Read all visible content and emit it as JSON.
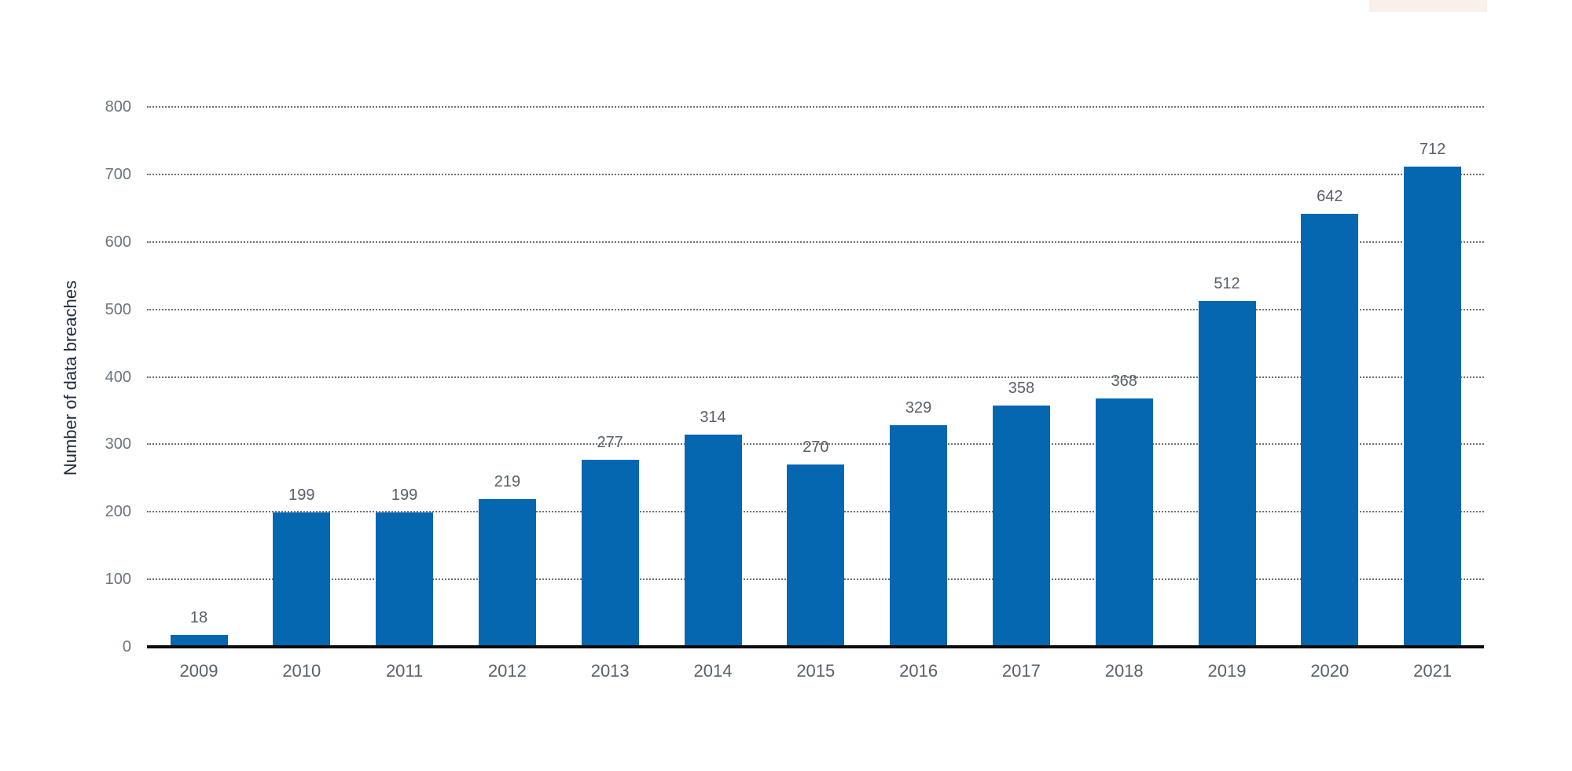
{
  "chart_data": {
    "type": "bar",
    "categories": [
      "2009",
      "2010",
      "2011",
      "2012",
      "2013",
      "2014",
      "2015",
      "2016",
      "2017",
      "2018",
      "2019",
      "2020",
      "2021"
    ],
    "values": [
      18,
      199,
      199,
      219,
      277,
      314,
      270,
      329,
      358,
      368,
      512,
      642,
      712
    ],
    "bar_value_labels": [
      "18",
      "199",
      "199",
      "219",
      "277",
      "314",
      "270",
      "329",
      "358",
      "368",
      "512",
      "642",
      "712"
    ],
    "title": "",
    "xlabel": "",
    "ylabel": "Number of data breaches",
    "ylim": [
      0,
      800
    ],
    "ytick_interval": 100,
    "ytick_labels": [
      "0",
      "100",
      "200",
      "300",
      "400",
      "500",
      "600",
      "700",
      "800"
    ],
    "grid": "horizontal-dotted",
    "legend": "none",
    "bar_color": "#0667b1"
  },
  "colors": {
    "bar": "#0667b1",
    "axis_line": "#0b0b0b",
    "gridline": "#6f6f6f",
    "tick_text": "#6b747e",
    "label_text": "#57616b",
    "axis_title_text": "#1d2c3c",
    "background": "#ffffff",
    "remnant": "#f7f1ea"
  },
  "artifacts": {
    "top_right_remnant": "cropped faint element at top edge"
  }
}
